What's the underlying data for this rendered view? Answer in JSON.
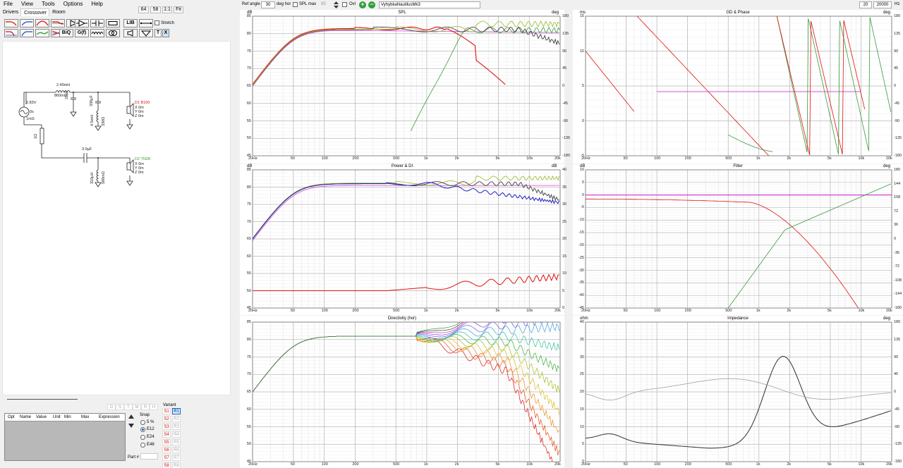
{
  "menu": [
    "File",
    "View",
    "Tools",
    "Options",
    "Help"
  ],
  "tabs": [
    "Drivers",
    "Crossover",
    "Room"
  ],
  "top_buttons": {
    "val1": "64",
    "val2": "58",
    "ratio": "1:1",
    "fit": "Fit"
  },
  "toolbar": {
    "biq": "BiQ",
    "gf": "G(f)",
    "lib": "LIB",
    "stretch": "Stretch",
    "t": "T",
    "x": "X"
  },
  "plot_toolbar": {
    "ref_angle_label": "Ref angle",
    "ref_angle_value": "30",
    "deg_hor": "deg hor",
    "spl_max": "SPL max",
    "spl_max_value": "85",
    "ovl": "Ovl",
    "project_name": "VyhybkaNautilusMk3",
    "freq_min": "20",
    "freq_max": "20000",
    "hz": "Hz"
  },
  "schematic": {
    "source_v": "2.83V",
    "source_phase": "0s",
    "source_r": "1mΩ",
    "l1": "2.49mH",
    "l1_r": "860mΩ",
    "c1": "22µF",
    "c2": "330µF",
    "l2": "4.5mH",
    "l2_r": "330Ω",
    "r1": "1Ω",
    "c3": "3.9µF",
    "l3": "310µH",
    "l3_r": "580mΩ",
    "d1_name": "D1 B100",
    "d1_x": "X 0m",
    "d1_y": "Y 0m",
    "d1_z": "Z 0m",
    "d2_name": "D2 TN28",
    "d2_x": "X 0m",
    "d2_y": "Y 0m",
    "d2_z": "Z 0m"
  },
  "opt_table": {
    "headers": [
      "Opt",
      "Name",
      "Value",
      "Unit",
      "Min",
      "Max",
      "Expression"
    ]
  },
  "dshmrh": [
    "D",
    "S",
    "T",
    "M",
    "R",
    "H"
  ],
  "snap": {
    "label": "Snap",
    "options": [
      "5 %",
      "E12",
      "E24",
      "E48"
    ],
    "selected": "E12"
  },
  "part_label": "Part #",
  "variant": {
    "label": "Variant",
    "s": [
      "S1",
      "S2",
      "S3",
      "S4",
      "S5",
      "S6",
      "S7",
      "S8"
    ],
    "r": [
      "R1",
      "R2",
      "R3",
      "R4",
      "R5",
      "R6",
      "R7",
      "R8"
    ]
  },
  "freq_ticks": [
    "20Hz",
    "50",
    "100",
    "200",
    "500",
    "1k",
    "2k",
    "5k",
    "10k",
    "20k"
  ],
  "plots": {
    "spl": {
      "title": "SPL",
      "unitL": "dB",
      "unitR": "deg",
      "yL": [
        "85",
        "80",
        "75",
        "70",
        "65",
        "60",
        "55",
        "50",
        "45"
      ],
      "yR": [
        "180",
        "135",
        "90",
        "45",
        "0",
        "-45",
        "-90",
        "-135",
        "-180"
      ]
    },
    "power": {
      "title": "Power & DI",
      "unitL": "dB",
      "unitR": "dB",
      "yL": [
        "85",
        "80",
        "75",
        "70",
        "65",
        "60",
        "55",
        "50",
        "45"
      ],
      "yR": [
        "40",
        "35",
        "30",
        "25",
        "20",
        "15",
        "10",
        "5",
        "0"
      ]
    },
    "dir": {
      "title": "Directivity (hor)",
      "unitL": "",
      "unitR": "",
      "yL": [
        "85",
        "80",
        "75",
        "70",
        "65",
        "60",
        "55",
        "50",
        "45"
      ],
      "yR": []
    },
    "gd": {
      "title": "GD & Phase",
      "unitL": "ms",
      "unitR": "deg",
      "yL": [
        "15",
        "10",
        "5",
        "0",
        "-5"
      ],
      "yR": [
        "180",
        "135",
        "90",
        "45",
        "0",
        "-45",
        "-90",
        "-135",
        "-180"
      ]
    },
    "filter": {
      "title": "Filter",
      "unitL": "dB",
      "unitR": "deg",
      "yL": [
        "10",
        "5",
        "0",
        "-5",
        "-10",
        "-15",
        "-20",
        "-25",
        "-30",
        "-35",
        "-40",
        "-45"
      ],
      "yR": [
        "180",
        "144",
        "108",
        "72",
        "36",
        "0",
        "-36",
        "-72",
        "-108",
        "-144",
        "-180"
      ]
    },
    "imp": {
      "title": "Impedance",
      "unitL": "ohm",
      "unitR": "deg",
      "yL": [
        "40",
        "35",
        "30",
        "25",
        "20",
        "15",
        "10",
        "5",
        "0"
      ],
      "yR": [
        "180",
        "135",
        "90",
        "45",
        "0",
        "-45",
        "-90",
        "-135",
        "-180"
      ]
    }
  },
  "colors": {
    "red": "#e01010",
    "green": "#3a9a3a",
    "olive": "#9ab82a",
    "dark": "#404040",
    "magenta": "#d040d0",
    "blue": "#2020c0"
  }
}
